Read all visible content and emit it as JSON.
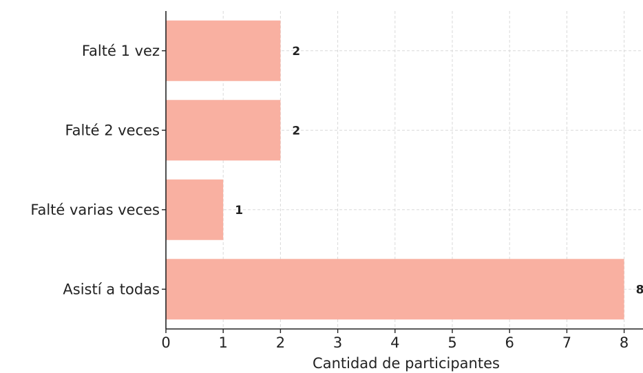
{
  "chart_data": {
    "type": "bar",
    "orientation": "horizontal",
    "categories": [
      "Falté 1 vez",
      "Falté 2 veces",
      "Falté varias veces",
      "Asistí a todas"
    ],
    "values": [
      2,
      2,
      1,
      8
    ],
    "data_labels": [
      "2",
      "2",
      "1",
      "8"
    ],
    "title": "",
    "xlabel": "Cantidad de participantes",
    "ylabel": "",
    "xlim": [
      0,
      8.3
    ],
    "x_ticks": [
      "0",
      "1",
      "2",
      "3",
      "4",
      "5",
      "6",
      "7",
      "8"
    ],
    "grid": true,
    "bar_color": "#f9b0a1"
  }
}
